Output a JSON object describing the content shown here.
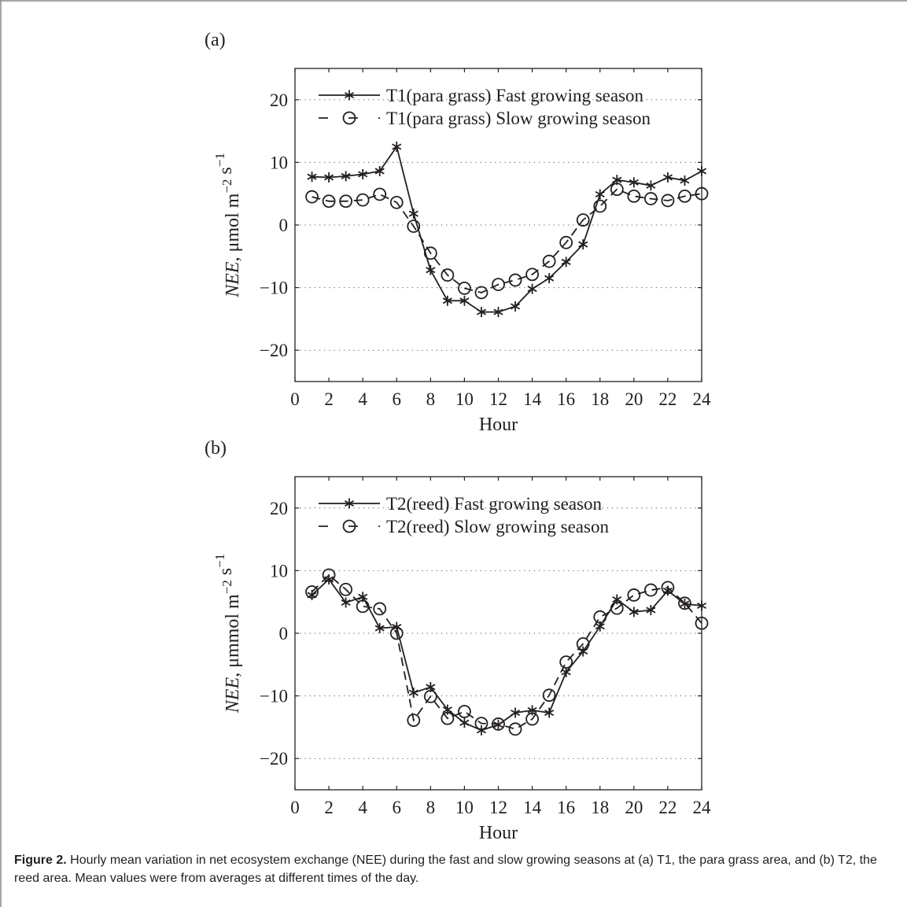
{
  "figure": {
    "caption_label": "Figure 2.",
    "caption_text": " Hourly mean variation in net ecosystem exchange (NEE) during the fast and slow growing seasons at (a) T1, the para grass area, and (b) T2, the reed area. Mean values were from averages at different times of the day."
  },
  "chart_data": [
    {
      "type": "line",
      "panel_label": "(a)",
      "xlabel": "Hour",
      "ylabel": "NEE, μmol m−2 s−1",
      "xlim": [
        0,
        24
      ],
      "ylim": [
        -25,
        25
      ],
      "xticks": [
        0,
        2,
        4,
        6,
        8,
        10,
        12,
        14,
        16,
        18,
        20,
        22,
        24
      ],
      "yticks": [
        -20,
        -10,
        0,
        10,
        20
      ],
      "grid": "horizontal dotted",
      "legend_position": "top",
      "x": [
        1,
        2,
        3,
        4,
        5,
        6,
        7,
        8,
        9,
        10,
        11,
        12,
        13,
        14,
        15,
        16,
        17,
        18,
        19,
        20,
        21,
        22,
        23,
        24
      ],
      "series": [
        {
          "name": "T1(para grass) Fast growing season",
          "marker": "asterisk",
          "line": "solid",
          "values": [
            7.7,
            7.6,
            7.8,
            8.1,
            8.6,
            12.5,
            1.8,
            -7.2,
            -12.1,
            -12.1,
            -13.9,
            -13.9,
            -13.0,
            -10.2,
            -8.5,
            -5.9,
            -3.1,
            4.9,
            7.2,
            6.8,
            6.3,
            7.6,
            7.1,
            8.6
          ]
        },
        {
          "name": "T1(para grass) Slow growing season",
          "marker": "circle",
          "line": "dashed",
          "values": [
            4.5,
            3.8,
            3.8,
            4.0,
            4.9,
            3.6,
            -0.2,
            -4.5,
            -8.0,
            -10.1,
            -10.8,
            -9.5,
            -8.8,
            -7.9,
            -5.8,
            -2.8,
            0.8,
            3.0,
            5.7,
            4.6,
            4.2,
            3.9,
            4.6,
            5.0
          ]
        }
      ]
    },
    {
      "type": "line",
      "panel_label": "(b)",
      "xlabel": "Hour",
      "ylabel": "NEE, μmmol m−2 s−1",
      "xlim": [
        0,
        24
      ],
      "ylim": [
        -25,
        25
      ],
      "xticks": [
        0,
        2,
        4,
        6,
        8,
        10,
        12,
        14,
        16,
        18,
        20,
        22,
        24
      ],
      "yticks": [
        -20,
        -10,
        0,
        10,
        20
      ],
      "grid": "horizontal dotted",
      "legend_position": "top",
      "x": [
        1,
        2,
        3,
        4,
        5,
        6,
        7,
        8,
        9,
        10,
        11,
        12,
        13,
        14,
        15,
        16,
        17,
        18,
        19,
        20,
        21,
        22,
        23,
        24
      ],
      "series": [
        {
          "name": "T2(reed) Fast growing season",
          "marker": "asterisk",
          "line": "solid",
          "values": [
            6.1,
            8.6,
            4.9,
            5.8,
            0.8,
            1.0,
            -9.5,
            -8.6,
            -12.2,
            -14.3,
            -15.5,
            -14.6,
            -12.7,
            -12.3,
            -12.7,
            -6.2,
            -2.9,
            1.1,
            5.4,
            3.4,
            3.7,
            6.8,
            4.7,
            4.4
          ]
        },
        {
          "name": "T2(reed) Slow growing season",
          "marker": "circle",
          "line": "dashed",
          "values": [
            6.6,
            9.3,
            7.0,
            4.3,
            3.9,
            0.0,
            -13.9,
            -10.1,
            -13.6,
            -12.5,
            -14.4,
            -14.5,
            -15.3,
            -13.7,
            -9.9,
            -4.6,
            -1.7,
            2.6,
            4.0,
            6.1,
            6.9,
            7.3,
            4.8,
            1.6
          ]
        }
      ]
    }
  ]
}
